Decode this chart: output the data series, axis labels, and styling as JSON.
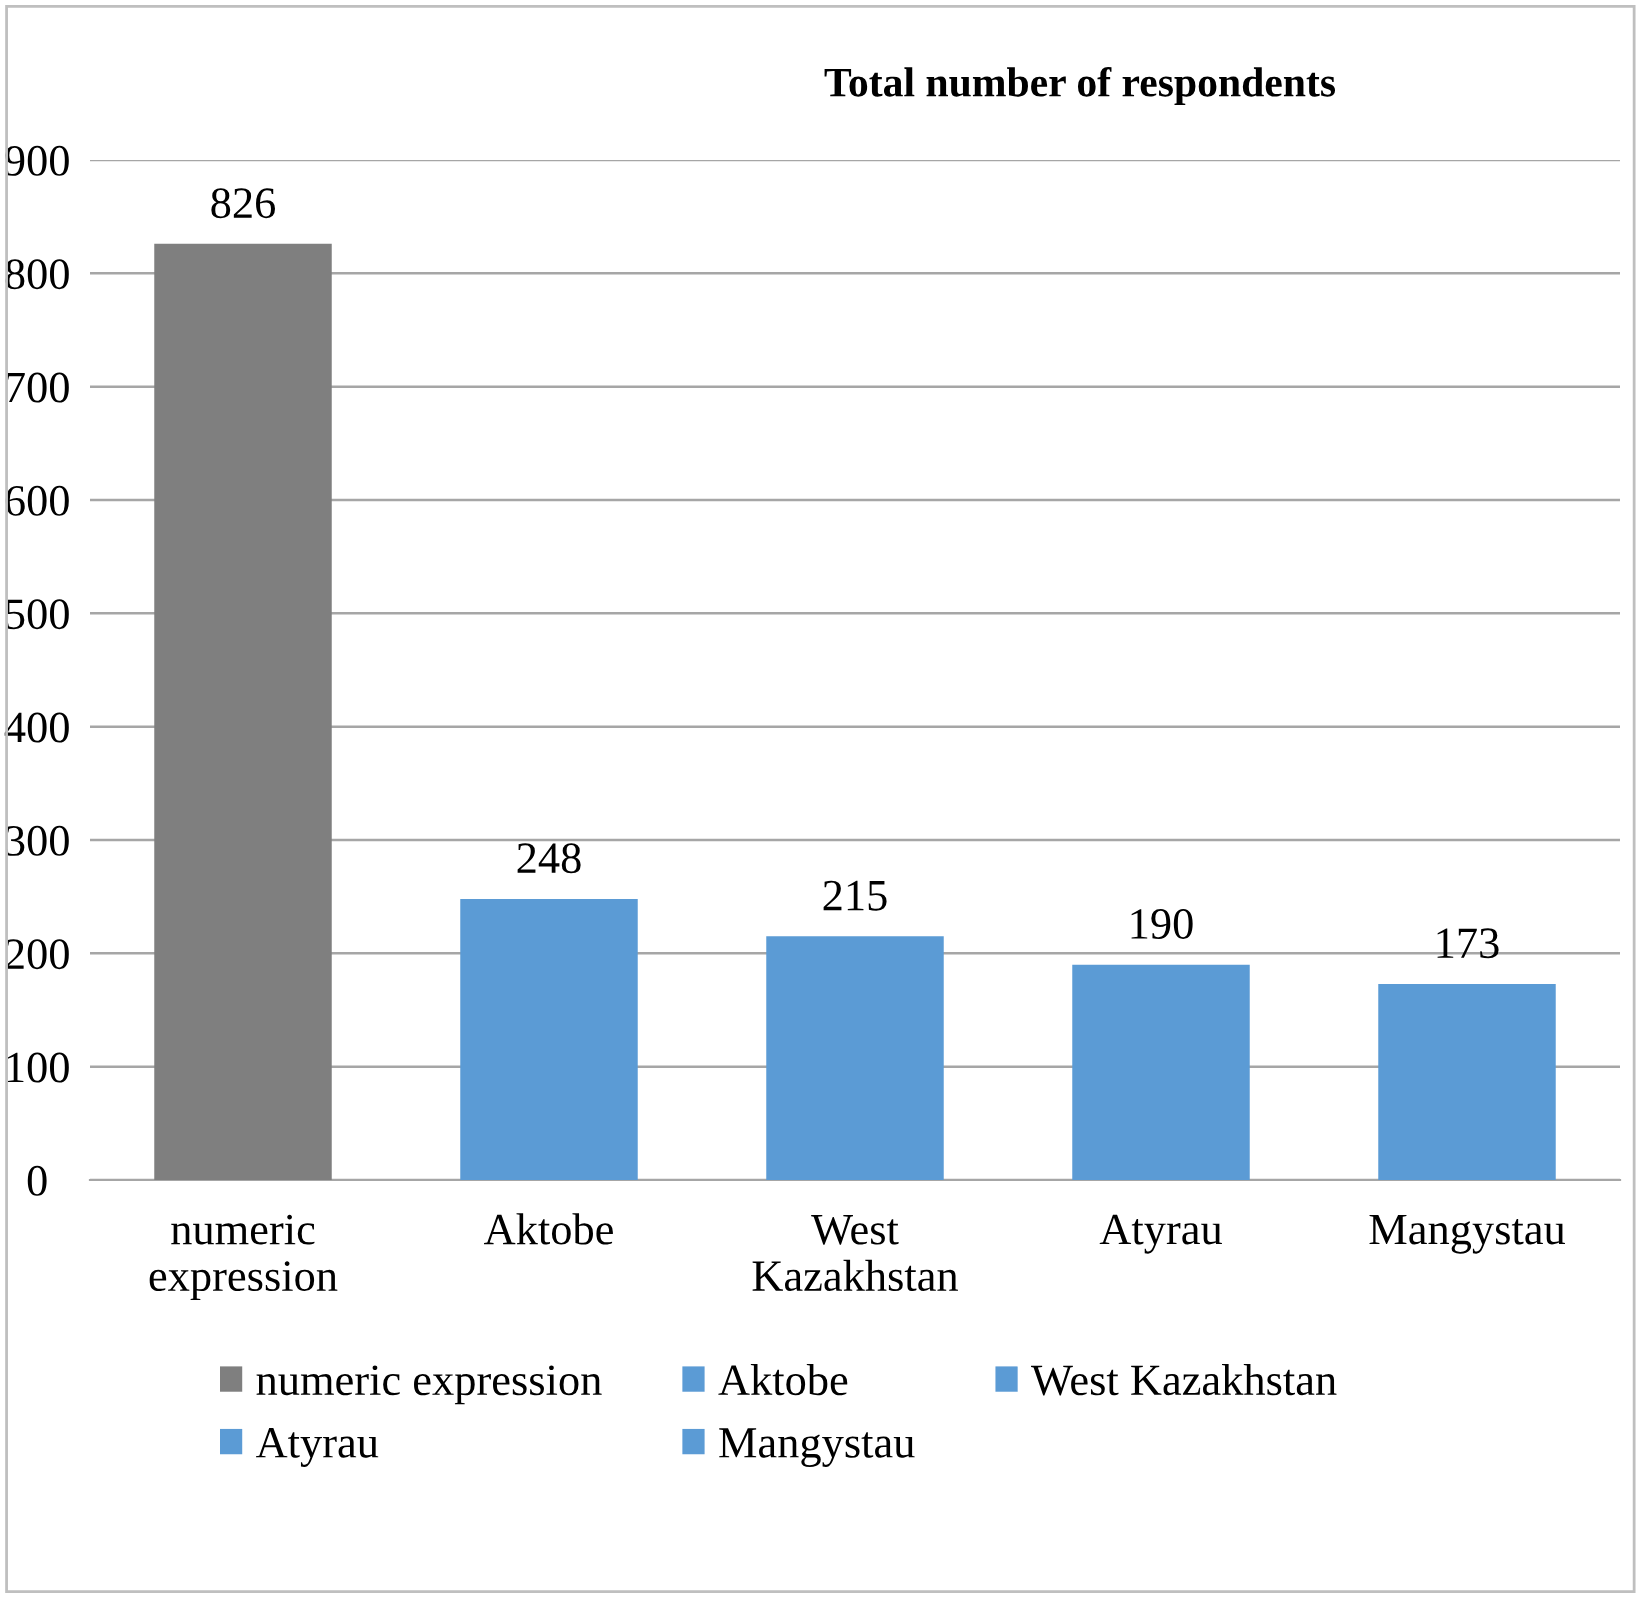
{
  "chart_data": {
    "type": "bar",
    "title": "Total number of respondents",
    "categories": [
      "numeric\nexpression",
      "Aktobe",
      "West\nKazakhstan",
      "Atyrau",
      "Mangystau"
    ],
    "series": [
      {
        "name": "numeric expression",
        "color": "#7f7f7f",
        "values": [
          826,
          null,
          null,
          null,
          null
        ]
      },
      {
        "name": "Aktobe",
        "color": "#5b9bd5",
        "values": [
          null,
          248,
          null,
          null,
          null
        ]
      },
      {
        "name": "West Kazakhstan",
        "color": "#5b9bd5",
        "values": [
          null,
          null,
          215,
          null,
          null
        ]
      },
      {
        "name": "Atyrau",
        "color": "#5b9bd5",
        "values": [
          null,
          null,
          null,
          190,
          null
        ]
      },
      {
        "name": "Mangystau",
        "color": "#5b9bd5",
        "values": [
          null,
          null,
          null,
          null,
          173
        ]
      }
    ],
    "ylim": [
      0,
      900
    ],
    "yticks": [
      0,
      100,
      200,
      300,
      400,
      500,
      600,
      700,
      800,
      900
    ],
    "grid": "y",
    "data_labels": true,
    "legend": "bottom"
  }
}
